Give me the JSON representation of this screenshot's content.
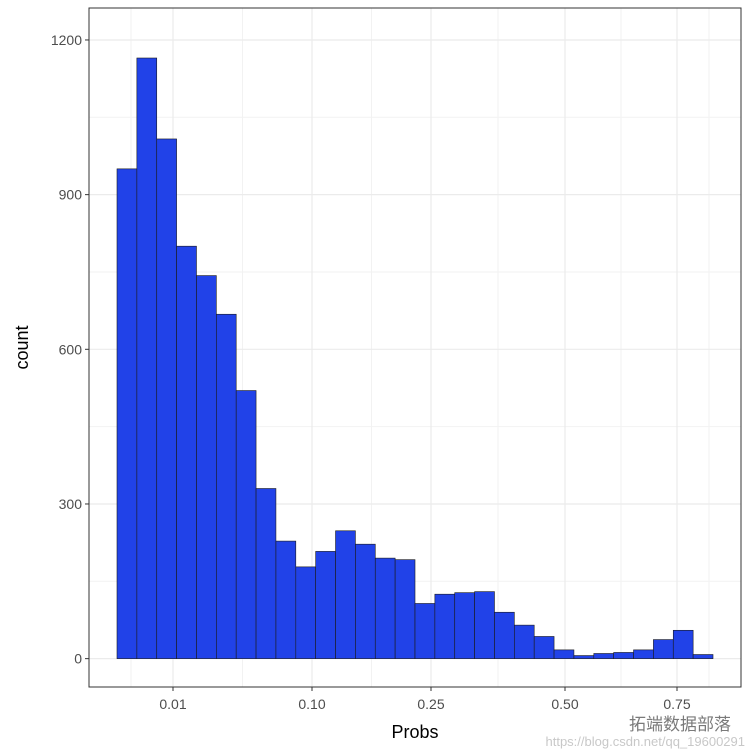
{
  "chart_data": {
    "type": "bar",
    "xlabel": "Probs",
    "ylabel": "count",
    "x_ticks": [
      "0.01",
      "0.10",
      "0.25",
      "0.50",
      "0.75"
    ],
    "y_ticks": [
      0,
      300,
      600,
      900,
      1200
    ],
    "ylim": [
      -55,
      1262
    ],
    "grid": true,
    "values": [
      950,
      1165,
      1008,
      800,
      743,
      668,
      520,
      330,
      228,
      178,
      208,
      248,
      222,
      195,
      192,
      107,
      125,
      128,
      130,
      90,
      65,
      43,
      17,
      6,
      10,
      12,
      17,
      37,
      55,
      8
    ],
    "bar_color": "#2142e8",
    "bar_edge_color": "#1a1a1a"
  },
  "watermark": {
    "text": "拓端数据部落",
    "url": "https://blog.csdn.net/qq_19600291"
  }
}
